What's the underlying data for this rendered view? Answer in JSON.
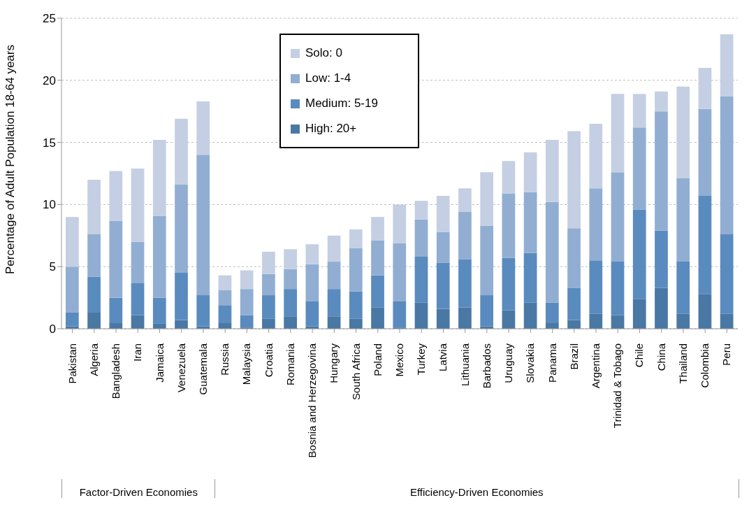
{
  "chart_data": {
    "type": "bar",
    "stacked": true,
    "ylabel": "Percentage of Adult Population 18-64 years",
    "categories": [
      "Pakistan",
      "Algeria",
      "Bangladesh",
      "Iran",
      "Jamaica",
      "Venezuela",
      "Guatemala",
      "Russia",
      "Malaysia",
      "Croatia",
      "Romania",
      "Bosnia and Herzegovina",
      "Hungary",
      "South Africa",
      "Poland",
      "Mexico",
      "Turkey",
      "Latvia",
      "Lithuania",
      "Barbados",
      "Uruguay",
      "Slovakia",
      "Panama",
      "Brazil",
      "Argentina",
      "Trinidad & Tobago",
      "Chile",
      "China",
      "Thailand",
      "Colombia",
      "Peru"
    ],
    "series": [
      {
        "name": "High: 20+",
        "color": "#4a78a5",
        "values": [
          0.2,
          1.3,
          0.5,
          1.1,
          0.4,
          0.7,
          0.2,
          0.5,
          0.1,
          0.8,
          1.0,
          0.2,
          1.0,
          0.8,
          1.7,
          0.1,
          2.1,
          1.6,
          1.7,
          0.2,
          1.5,
          2.1,
          0.5,
          0.7,
          1.2,
          1.1,
          2.4,
          3.3,
          1.2,
          2.8,
          1.2
        ]
      },
      {
        "name": "Medium: 5-19",
        "color": "#5a8bbf",
        "values": [
          1.1,
          2.9,
          2.0,
          2.6,
          2.1,
          3.8,
          2.5,
          1.4,
          1.0,
          1.9,
          2.2,
          2.0,
          2.2,
          2.2,
          2.6,
          2.1,
          3.7,
          3.7,
          3.9,
          2.5,
          4.2,
          4.0,
          1.6,
          2.6,
          4.3,
          4.3,
          7.2,
          4.6,
          4.2,
          7.9,
          6.4
        ]
      },
      {
        "name": "Low: 1-4",
        "color": "#91aed2",
        "values": [
          3.7,
          3.4,
          6.2,
          3.3,
          6.6,
          7.1,
          11.3,
          1.2,
          2.1,
          1.7,
          1.6,
          3.0,
          2.2,
          3.5,
          2.8,
          4.7,
          3.0,
          2.5,
          3.8,
          5.6,
          5.2,
          4.9,
          8.1,
          4.8,
          5.8,
          7.2,
          6.6,
          9.6,
          6.7,
          7.0,
          11.1
        ]
      },
      {
        "name": "Solo: 0",
        "color": "#c5cfe3",
        "values": [
          4.0,
          4.4,
          4.0,
          5.9,
          6.1,
          5.3,
          4.3,
          1.2,
          1.5,
          1.8,
          1.6,
          1.6,
          2.1,
          1.5,
          1.9,
          3.1,
          1.5,
          2.9,
          1.9,
          4.3,
          2.6,
          3.2,
          5.0,
          7.8,
          5.2,
          6.3,
          2.7,
          1.6,
          7.4,
          3.3,
          5.0
        ]
      }
    ],
    "ylim": [
      0,
      25
    ],
    "yticks": [
      0,
      5,
      10,
      15,
      20,
      25
    ],
    "grid": "y",
    "legend": "top",
    "annotations": [
      "Factor-Driven Economies",
      "Efficiency-Driven Economies"
    ]
  }
}
